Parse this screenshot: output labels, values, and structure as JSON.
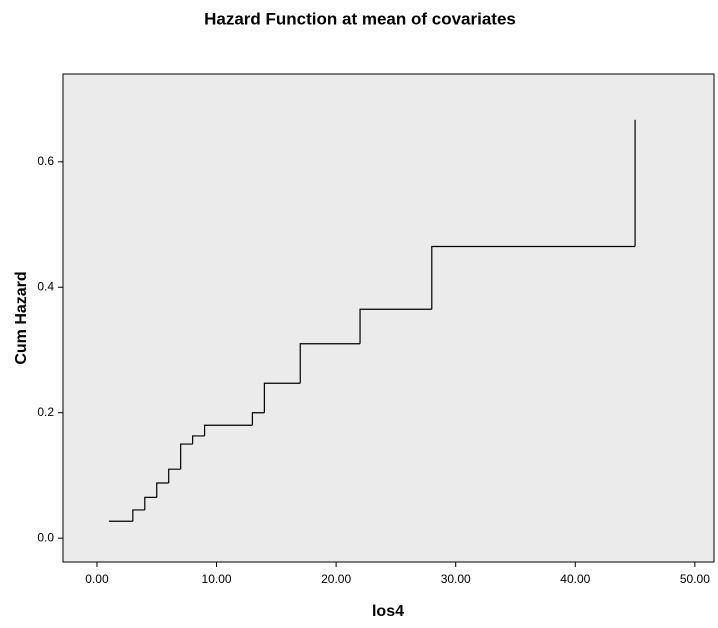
{
  "chart_data": {
    "type": "step",
    "title": "Hazard Function at mean of covariates",
    "x_label": "los4",
    "y_label": "Cum Hazard",
    "x": [
      1,
      3,
      4,
      5,
      6,
      7,
      8,
      9,
      13,
      14,
      17,
      22,
      28,
      45
    ],
    "series": [
      {
        "name": "Cum Hazard",
        "color": "#000000",
        "values": [
          0.027,
          0.045,
          0.065,
          0.088,
          0.11,
          0.15,
          0.163,
          0.18,
          0.2,
          0.247,
          0.31,
          0.365,
          0.465,
          0.667
        ]
      }
    ],
    "xlim": [
      -2.84,
      51.6
    ],
    "xticks": [
      {
        "value": 0,
        "label": "0.00"
      },
      {
        "value": 10,
        "label": "10.00"
      },
      {
        "value": 20,
        "label": "20.00"
      },
      {
        "value": 30,
        "label": "30.00"
      },
      {
        "value": 40,
        "label": "40.00"
      },
      {
        "value": 50,
        "label": "50.00"
      }
    ],
    "ylim": [
      -0.038,
      0.74
    ],
    "yticks": [
      {
        "value": 0,
        "label": "0.0"
      },
      {
        "value": 0.2,
        "label": "0.2"
      },
      {
        "value": 0.4,
        "label": "0.4"
      },
      {
        "value": 0.6,
        "label": "0.6"
      }
    ],
    "grid": false,
    "background": "#ebebeb"
  }
}
